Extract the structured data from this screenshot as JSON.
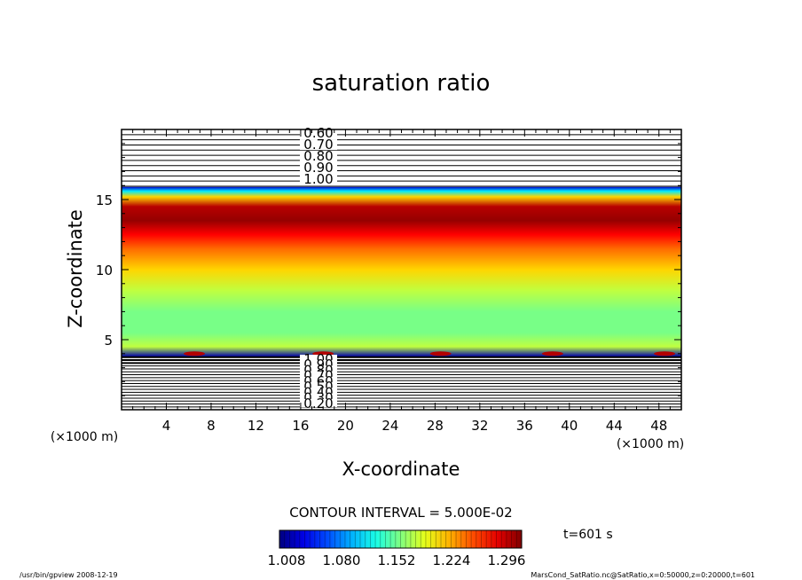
{
  "chart_data": {
    "type": "heatmap",
    "title": "saturation ratio",
    "xlabel": "X-coordinate",
    "ylabel": "Z-coordinate",
    "x_unit": "(×1000 m)",
    "y_unit": "(×1000 m)",
    "xlim": [
      0,
      50
    ],
    "ylim": [
      0,
      20
    ],
    "xticks": [
      4,
      8,
      12,
      16,
      20,
      24,
      28,
      32,
      36,
      40,
      44,
      48
    ],
    "yticks": [
      5,
      10,
      15
    ],
    "contour_interval_text": "CONTOUR INTERVAL = 5.000E-02",
    "time_text": "t=601 s",
    "colorbar": {
      "min": 1.008,
      "max": 1.296,
      "tick_labels": [
        "1.008",
        "1.080",
        "1.152",
        "1.224",
        "1.296"
      ]
    },
    "upper_contour_labels": [
      "0.60",
      "0.70",
      "0.80",
      "0.90",
      "1.00"
    ],
    "lower_contour_labels": [
      "1.00",
      "0.90",
      "0.80",
      "0.70",
      "0.60",
      "0.50",
      "0.40",
      "0.30",
      "0.20"
    ],
    "vertical_profile": [
      {
        "z": 3.8,
        "value": 1.02
      },
      {
        "z": 4.5,
        "value": 1.17
      },
      {
        "z": 5.5,
        "value": 1.15
      },
      {
        "z": 7.0,
        "value": 1.15
      },
      {
        "z": 8.5,
        "value": 1.17
      },
      {
        "z": 10.0,
        "value": 1.2
      },
      {
        "z": 11.5,
        "value": 1.23
      },
      {
        "z": 12.5,
        "value": 1.26
      },
      {
        "z": 13.5,
        "value": 1.29
      },
      {
        "z": 14.5,
        "value": 1.28
      },
      {
        "z": 15.2,
        "value": 1.2
      },
      {
        "z": 15.6,
        "value": 1.11
      },
      {
        "z": 15.9,
        "value": 1.03
      }
    ],
    "colors": {
      "low": "#0000cc",
      "mid": "#00ff00",
      "high": "#ff0000"
    }
  },
  "footer": {
    "left": "/usr/bin/gpview   2008-12-19",
    "right": "MarsCond_SatRatio.nc@SatRatio,x=0:50000,z=0:20000,t=601"
  }
}
